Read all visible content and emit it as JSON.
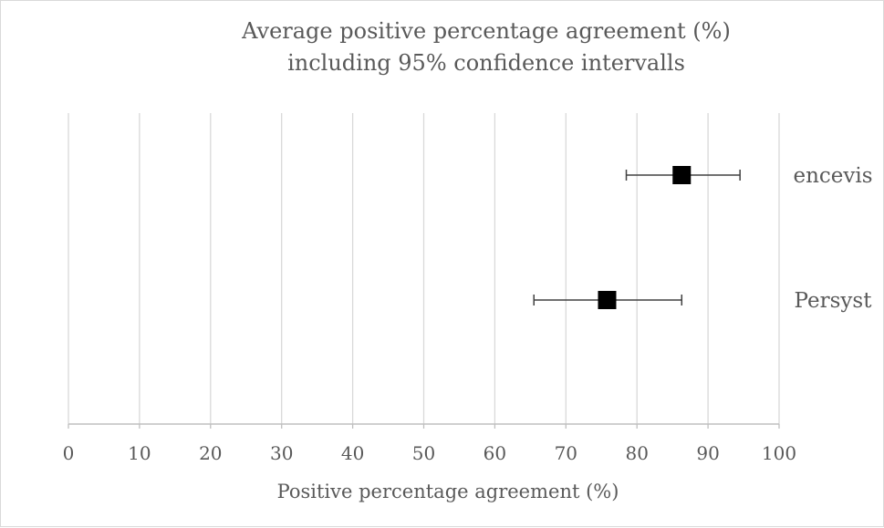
{
  "chart_data": {
    "type": "scatter",
    "title": "Average positive percentage agreement (%)",
    "subtitle": "including 95% confidence intervalls",
    "xlabel": "Positive percentage agreement (%)",
    "ylabel": "",
    "xlim": [
      0,
      100
    ],
    "xticks": [
      "0",
      "10",
      "20",
      "30",
      "40",
      "50",
      "60",
      "70",
      "80",
      "90",
      "100"
    ],
    "grid": "vertical",
    "legend": "none",
    "marker_color": "#000000",
    "series": [
      {
        "category": "encevis",
        "value": 86.3,
        "ci_low": 78.5,
        "ci_high": 94.5
      },
      {
        "category": "Persyst",
        "value": 75.8,
        "ci_low": 65.5,
        "ci_high": 86.3
      }
    ]
  }
}
